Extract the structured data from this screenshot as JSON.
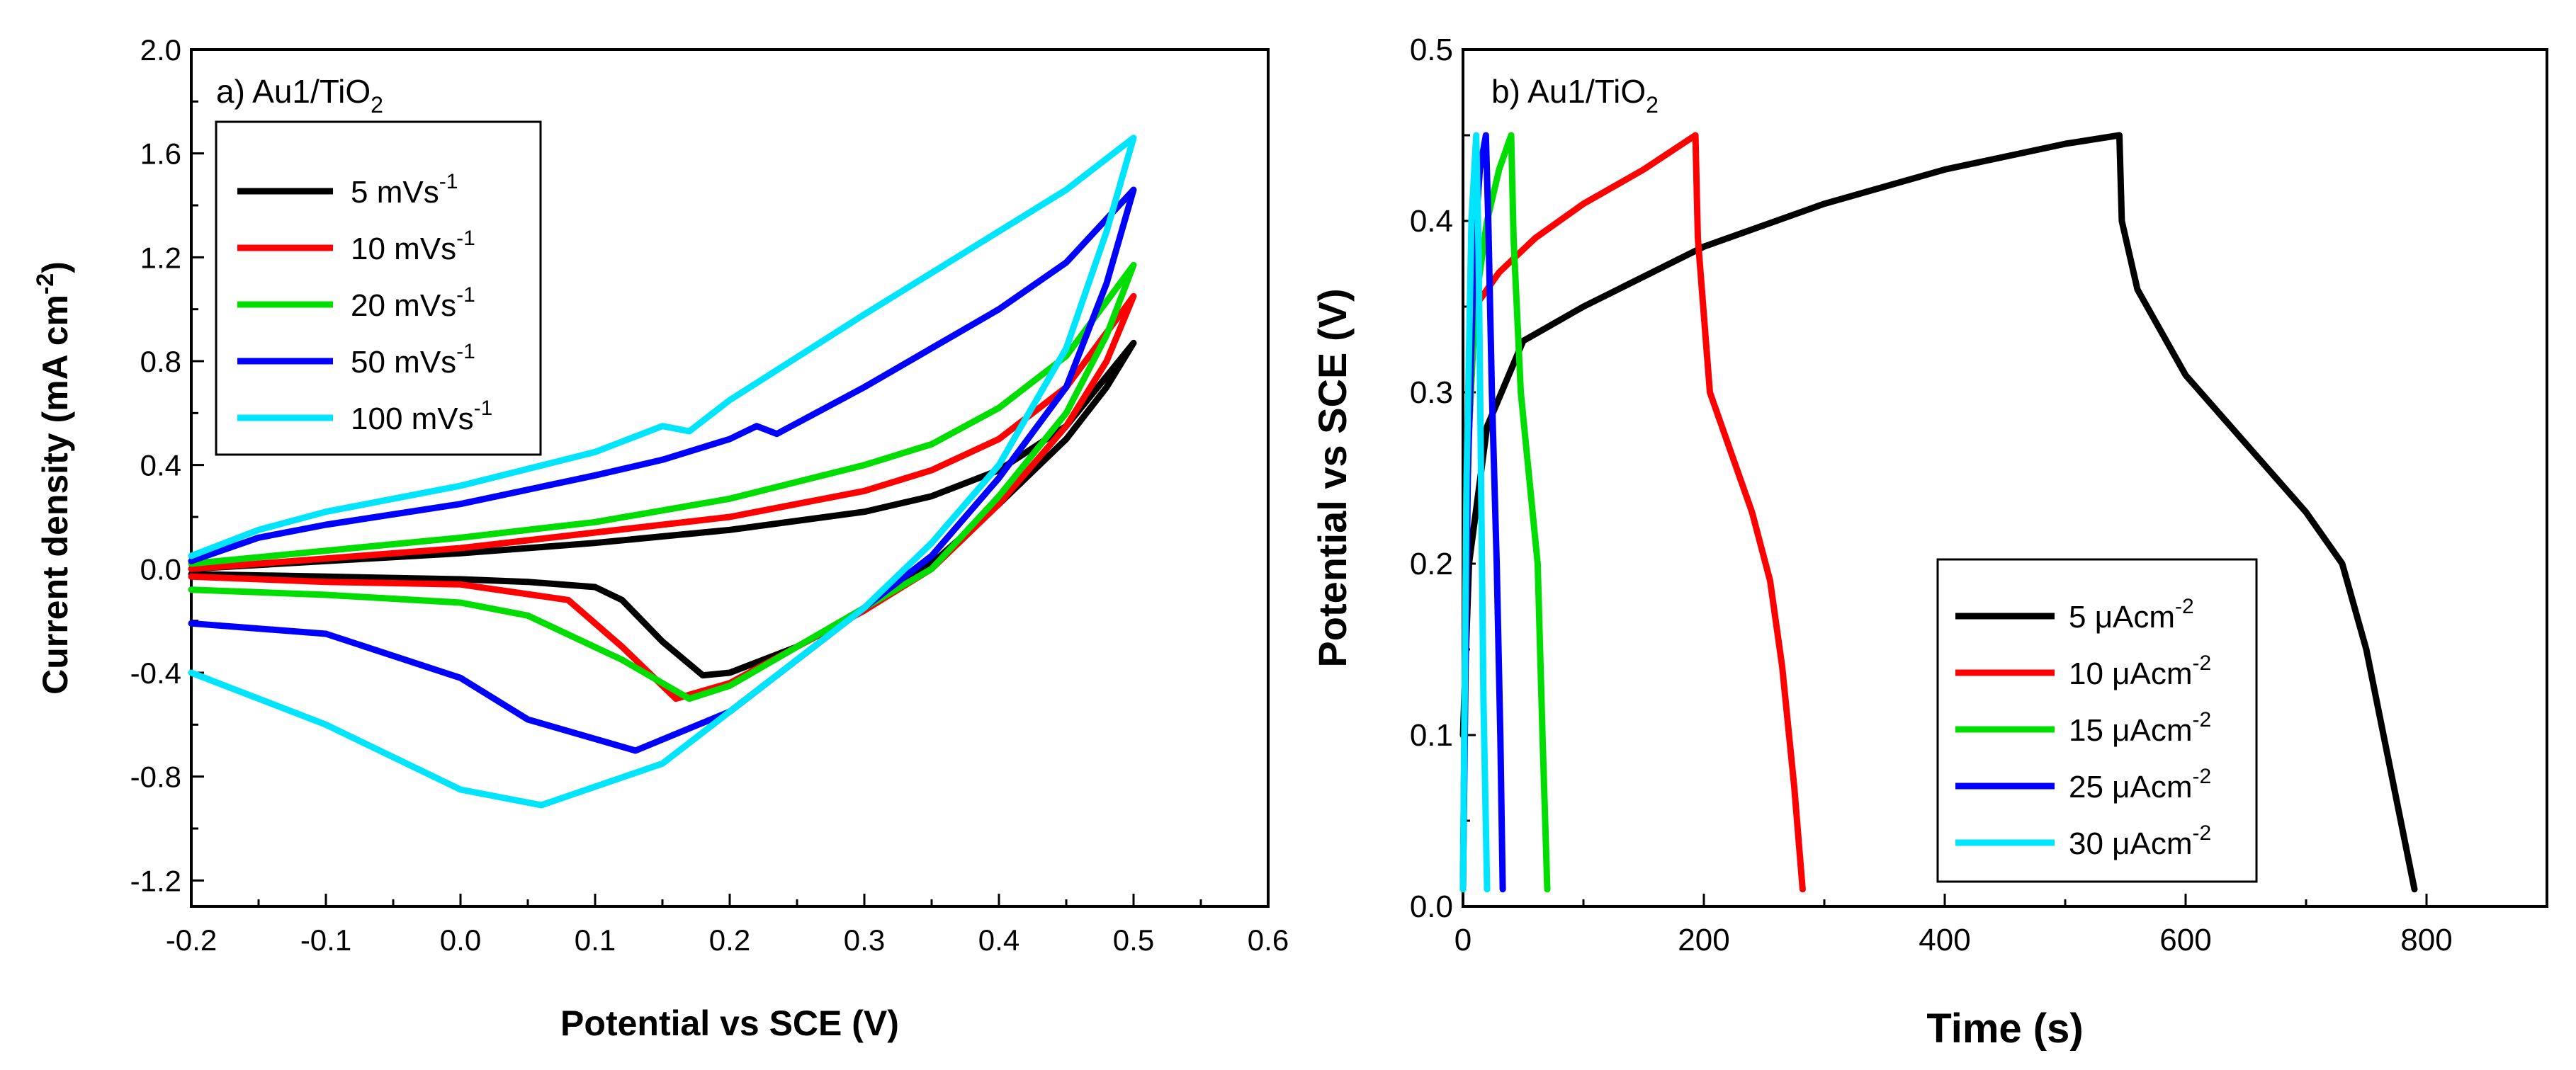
{
  "chart_data": [
    {
      "type": "line",
      "panel_label": "a) Au1/TiO",
      "panel_label_sub": "2",
      "xlabel": "Potential vs SCE (V)",
      "ylabel": "Current density (mA cm",
      "ylabel_sup": "-2",
      "ylabel_end": ")",
      "xlim": [
        -0.2,
        0.6
      ],
      "ylim": [
        -1.3,
        2.0
      ],
      "xticks": [
        "-0.2",
        "-0.1",
        "0.0",
        "0.1",
        "0.2",
        "0.3",
        "0.4",
        "0.5",
        "0.6"
      ],
      "yticks": [
        "-1.2",
        "-0.8",
        "-0.4",
        "0.0",
        "0.4",
        "0.8",
        "1.2",
        "1.6",
        "2.0"
      ],
      "legend_position": "top-left",
      "series": [
        {
          "name": "5 mVs",
          "name_sup": "-1",
          "color": "#000000",
          "x": [
            -0.2,
            -0.1,
            0.0,
            0.1,
            0.2,
            0.3,
            0.35,
            0.4,
            0.45,
            0.5,
            0.5,
            0.48,
            0.45,
            0.4,
            0.35,
            0.3,
            0.25,
            0.2,
            0.18,
            0.15,
            0.12,
            0.1,
            0.05,
            0.0,
            -0.1,
            -0.2
          ],
          "y": [
            0.0,
            0.03,
            0.06,
            0.1,
            0.15,
            0.22,
            0.28,
            0.38,
            0.55,
            0.87,
            0.87,
            0.7,
            0.5,
            0.25,
            0.02,
            -0.16,
            -0.3,
            -0.4,
            -0.41,
            -0.28,
            -0.12,
            -0.07,
            -0.05,
            -0.04,
            -0.03,
            -0.02
          ]
        },
        {
          "name": "10 mVs",
          "name_sup": "-1",
          "color": "#ff0000",
          "x": [
            -0.2,
            -0.1,
            0.0,
            0.1,
            0.2,
            0.3,
            0.35,
            0.4,
            0.45,
            0.5,
            0.5,
            0.48,
            0.45,
            0.4,
            0.35,
            0.3,
            0.25,
            0.2,
            0.16,
            0.12,
            0.08,
            0.0,
            -0.1,
            -0.2
          ],
          "y": [
            0.0,
            0.04,
            0.08,
            0.14,
            0.2,
            0.3,
            0.38,
            0.5,
            0.7,
            1.05,
            1.05,
            0.8,
            0.55,
            0.25,
            0.0,
            -0.16,
            -0.3,
            -0.44,
            -0.5,
            -0.3,
            -0.12,
            -0.06,
            -0.05,
            -0.03
          ]
        },
        {
          "name": "20 mVs",
          "name_sup": "-1",
          "color": "#00dd00",
          "x": [
            -0.2,
            -0.1,
            0.0,
            0.1,
            0.2,
            0.3,
            0.35,
            0.4,
            0.45,
            0.5,
            0.5,
            0.48,
            0.45,
            0.4,
            0.35,
            0.3,
            0.25,
            0.2,
            0.17,
            0.12,
            0.05,
            0.0,
            -0.1,
            -0.2
          ],
          "y": [
            0.02,
            0.07,
            0.12,
            0.18,
            0.27,
            0.4,
            0.48,
            0.62,
            0.82,
            1.17,
            1.17,
            0.9,
            0.6,
            0.28,
            0.0,
            -0.15,
            -0.3,
            -0.45,
            -0.5,
            -0.35,
            -0.18,
            -0.13,
            -0.1,
            -0.08
          ]
        },
        {
          "name": "50 mVs",
          "name_sup": "-1",
          "color": "#0000ff",
          "x": [
            -0.2,
            -0.15,
            -0.1,
            0.0,
            0.1,
            0.15,
            0.2,
            0.22,
            0.235,
            0.3,
            0.35,
            0.4,
            0.45,
            0.5,
            0.5,
            0.48,
            0.45,
            0.4,
            0.35,
            0.3,
            0.25,
            0.2,
            0.13,
            0.05,
            0.0,
            -0.1,
            -0.2
          ],
          "y": [
            0.03,
            0.12,
            0.17,
            0.25,
            0.36,
            0.42,
            0.5,
            0.55,
            0.52,
            0.7,
            0.85,
            1.0,
            1.18,
            1.46,
            1.46,
            1.1,
            0.7,
            0.35,
            0.05,
            -0.15,
            -0.35,
            -0.55,
            -0.7,
            -0.58,
            -0.42,
            -0.25,
            -0.21
          ]
        },
        {
          "name": "100 mVs",
          "name_sup": "-1",
          "color": "#00e5ff",
          "x": [
            -0.2,
            -0.15,
            -0.1,
            0.0,
            0.1,
            0.15,
            0.17,
            0.2,
            0.3,
            0.4,
            0.45,
            0.5,
            0.5,
            0.48,
            0.45,
            0.4,
            0.35,
            0.3,
            0.2,
            0.15,
            0.06,
            0.0,
            -0.1,
            -0.2
          ],
          "y": [
            0.05,
            0.15,
            0.22,
            0.32,
            0.45,
            0.55,
            0.53,
            0.65,
            0.98,
            1.3,
            1.46,
            1.66,
            1.66,
            1.3,
            0.85,
            0.4,
            0.1,
            -0.15,
            -0.55,
            -0.75,
            -0.91,
            -0.85,
            -0.6,
            -0.4
          ]
        }
      ]
    },
    {
      "type": "line",
      "panel_label": "b) Au1/TiO",
      "panel_label_sub": "2",
      "xlabel": "Time (s)",
      "ylabel": "Potential vs SCE (V)",
      "xlim": [
        0,
        900
      ],
      "ylim": [
        0,
        0.5
      ],
      "xticks": [
        "0",
        "200",
        "400",
        "600",
        "800"
      ],
      "yticks": [
        "0.0",
        "0.1",
        "0.2",
        "0.3",
        "0.4",
        "0.5"
      ],
      "legend_position": "bottom-right",
      "series": [
        {
          "name": "5 μAcm",
          "name_sup": "-2",
          "color": "#000000",
          "x": [
            0,
            5,
            20,
            50,
            100,
            200,
            300,
            400,
            500,
            545,
            547,
            560,
            600,
            650,
            700,
            730,
            750,
            770,
            790
          ],
          "y": [
            0.1,
            0.2,
            0.28,
            0.33,
            0.35,
            0.385,
            0.41,
            0.43,
            0.445,
            0.45,
            0.4,
            0.36,
            0.31,
            0.27,
            0.23,
            0.2,
            0.15,
            0.08,
            0.01
          ]
        },
        {
          "name": "10 μAcm",
          "name_sup": "-2",
          "color": "#ff0000",
          "x": [
            0,
            3,
            10,
            30,
            60,
            100,
            150,
            193,
            195,
            205,
            220,
            240,
            255,
            265,
            275,
            282
          ],
          "y": [
            0.01,
            0.25,
            0.35,
            0.37,
            0.39,
            0.41,
            0.43,
            0.45,
            0.39,
            0.3,
            0.27,
            0.23,
            0.19,
            0.14,
            0.07,
            0.01
          ]
        },
        {
          "name": "15 μAcm",
          "name_sup": "-2",
          "color": "#00dd00",
          "x": [
            0,
            3,
            10,
            20,
            30,
            40,
            42,
            48,
            55,
            62,
            66,
            70
          ],
          "y": [
            0.01,
            0.25,
            0.35,
            0.4,
            0.43,
            0.45,
            0.39,
            0.3,
            0.25,
            0.2,
            0.1,
            0.01
          ]
        },
        {
          "name": "25 μAcm",
          "name_sup": "-2",
          "color": "#0000ff",
          "x": [
            0,
            4,
            9,
            14,
            19,
            21,
            24,
            28,
            31,
            33
          ],
          "y": [
            0.01,
            0.25,
            0.38,
            0.43,
            0.45,
            0.4,
            0.3,
            0.2,
            0.1,
            0.01
          ]
        },
        {
          "name": "30 μAcm",
          "name_sup": "-2",
          "color": "#00e5ff",
          "x": [
            0,
            3,
            7,
            11,
            13,
            15,
            17,
            20
          ],
          "y": [
            0.01,
            0.25,
            0.4,
            0.45,
            0.38,
            0.25,
            0.12,
            0.01
          ]
        }
      ]
    }
  ]
}
